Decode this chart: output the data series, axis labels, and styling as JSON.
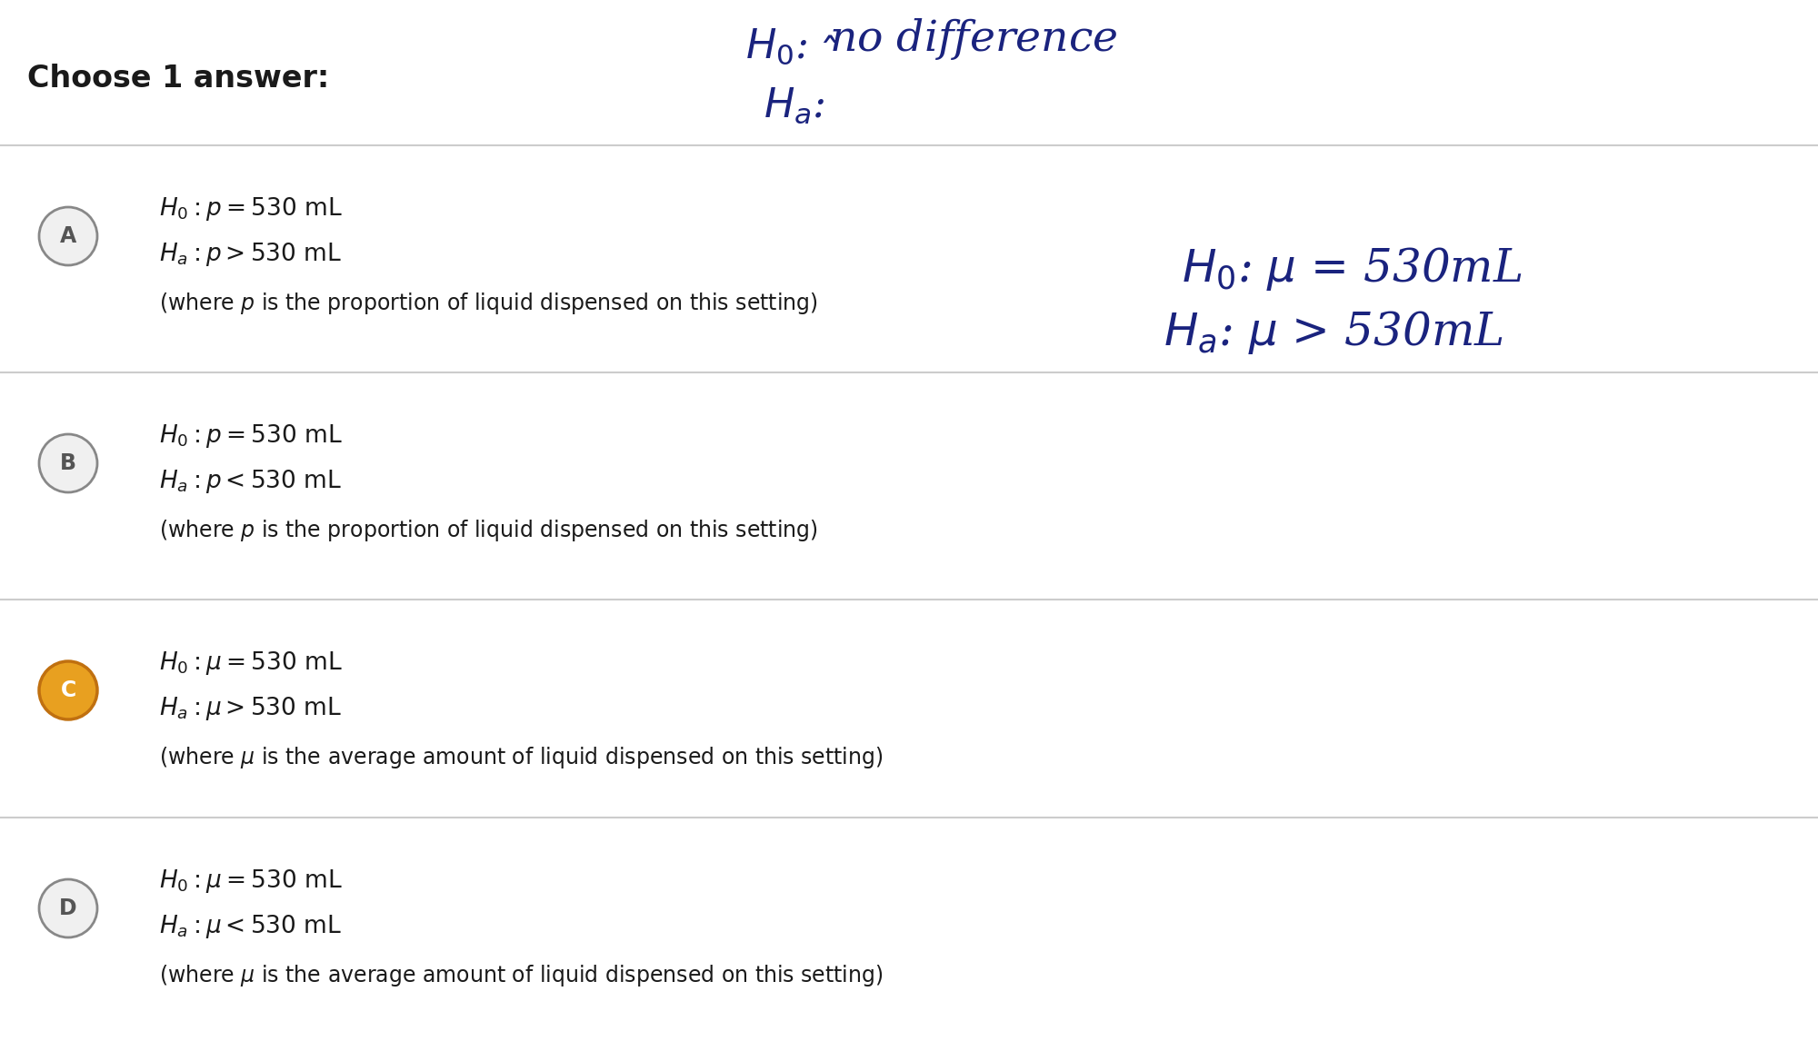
{
  "bg_color": "#ffffff",
  "title_text": "Choose 1 answer:",
  "text_color": "#1a1a1a",
  "hw_color": "#1a237e",
  "options": [
    {
      "label": "A",
      "selected": false,
      "line1": "$H_0 : p = 530\\text{ mL}$",
      "line2": "$H_a : p > 530\\text{ mL}$",
      "line3": "(where $p$ is the proportion of liquid dispensed on this setting)"
    },
    {
      "label": "B",
      "selected": false,
      "line1": "$H_0 : p = 530\\text{ mL}$",
      "line2": "$H_a : p < 530\\text{ mL}$",
      "line3": "(where $p$ is the proportion of liquid dispensed on this setting)"
    },
    {
      "label": "C",
      "selected": true,
      "line1": "$H_0 : \\mu = 530\\text{ mL}$",
      "line2": "$H_a : \\mu > 530\\text{ mL}$",
      "line3": "(where $\\mu$ is the average amount of liquid dispensed on this setting)"
    },
    {
      "label": "D",
      "selected": false,
      "line1": "$H_0 : \\mu = 530\\text{ mL}$",
      "line2": "$H_a : \\mu < 530\\text{ mL}$",
      "line3": "(where $\\mu$ is the average amount of liquid dispensed on this setting)"
    }
  ],
  "circle_selected_face": "#e8a020",
  "circle_selected_edge": "#c07010",
  "circle_unselected_face": "#f0f0f0",
  "circle_unselected_edge": "#888888",
  "separator_color": "#cccccc",
  "main_fontsize": 19,
  "sub_fontsize": 17,
  "title_fontsize": 24
}
